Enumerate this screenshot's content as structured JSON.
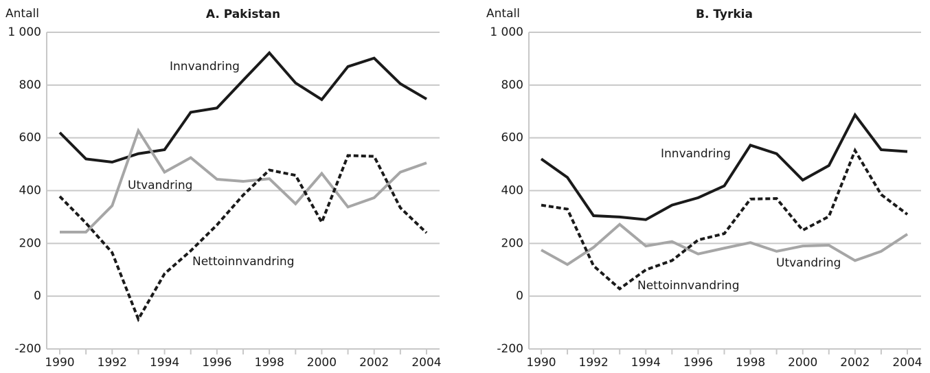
{
  "chart_data": [
    {
      "type": "line",
      "title": "A. Pakistan",
      "ylabel": "Antall",
      "x": [
        1990,
        1991,
        1992,
        1993,
        1994,
        1995,
        1996,
        1997,
        1998,
        1999,
        2000,
        2001,
        2002,
        2003,
        2004
      ],
      "series": [
        {
          "name": "Innvandring",
          "color": "#1a1a1a",
          "linestyle": "solid",
          "values": [
            620,
            520,
            508,
            540,
            555,
            697,
            713,
            818,
            922,
            808,
            745,
            870,
            902,
            805,
            747
          ]
        },
        {
          "name": "Utvandring",
          "color": "#a6a6a6",
          "linestyle": "solid",
          "values": [
            243,
            243,
            343,
            627,
            470,
            525,
            443,
            435,
            445,
            350,
            465,
            338,
            373,
            470,
            505
          ]
        },
        {
          "name": "Nettoinnvandring",
          "color": "#1a1a1a",
          "linestyle": "dashed",
          "values": [
            378,
            277,
            165,
            -87,
            85,
            172,
            270,
            383,
            478,
            458,
            280,
            533,
            530,
            335,
            240
          ]
        }
      ],
      "xlim": [
        1990,
        2004
      ],
      "xticks": [
        1990,
        1992,
        1994,
        1996,
        1998,
        2000,
        2002,
        2004
      ],
      "ylim": [
        -200,
        1000
      ],
      "yticks": [
        -200,
        0,
        200,
        400,
        600,
        800,
        {
          "value": 1000,
          "label": "1 000"
        }
      ],
      "grid": true
    },
    {
      "type": "line",
      "title": "B. Tyrkia",
      "ylabel": "Antall",
      "x": [
        1990,
        1991,
        1992,
        1993,
        1994,
        1995,
        1996,
        1997,
        1998,
        1999,
        2000,
        2001,
        2002,
        2003,
        2004
      ],
      "series": [
        {
          "name": "Innvandring",
          "color": "#1a1a1a",
          "linestyle": "solid",
          "values": [
            520,
            450,
            305,
            300,
            290,
            345,
            373,
            418,
            572,
            540,
            440,
            495,
            687,
            555,
            548
          ]
        },
        {
          "name": "Utvandring",
          "color": "#a6a6a6",
          "linestyle": "solid",
          "values": [
            175,
            120,
            185,
            272,
            190,
            207,
            160,
            182,
            203,
            170,
            190,
            193,
            135,
            170,
            235
          ]
        },
        {
          "name": "Nettoinnvandring",
          "color": "#1a1a1a",
          "linestyle": "dashed",
          "values": [
            345,
            330,
            115,
            28,
            100,
            135,
            213,
            237,
            368,
            370,
            250,
            302,
            552,
            385,
            310
          ]
        }
      ],
      "xlim": [
        1990,
        2004
      ],
      "xticks": [
        1990,
        1992,
        1994,
        1996,
        1998,
        2000,
        2002,
        2004
      ],
      "ylim": [
        -200,
        1000
      ],
      "yticks": [
        -200,
        0,
        200,
        400,
        600,
        800,
        {
          "value": 1000,
          "label": "1 000"
        }
      ],
      "grid": true
    }
  ]
}
